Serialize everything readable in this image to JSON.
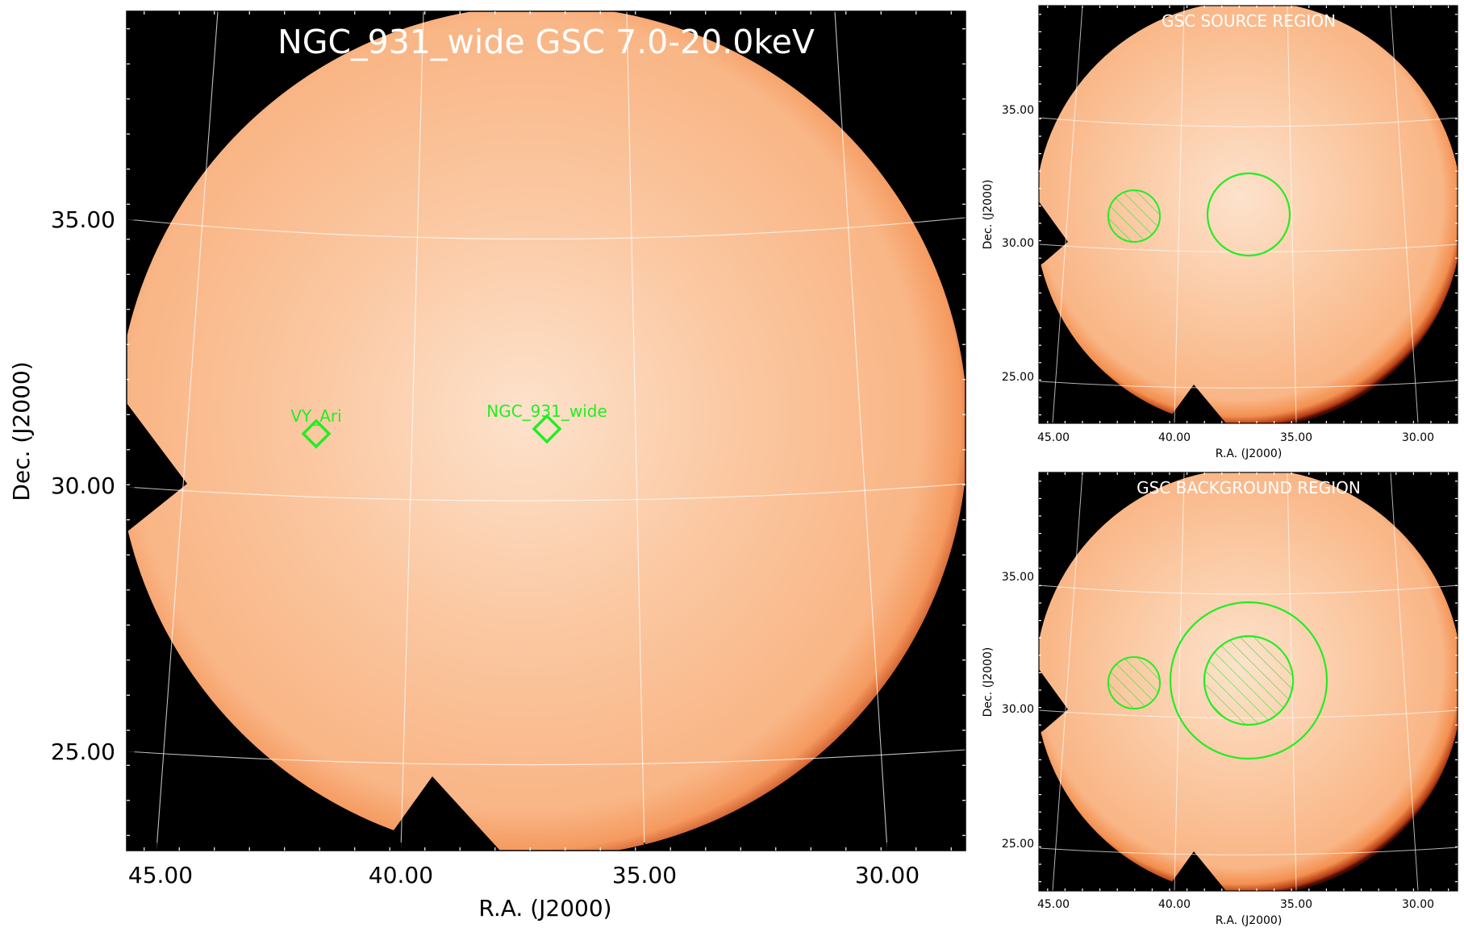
{
  "main_panel": {
    "title": "NGC_931_wide GSC 7.0-20.0keV",
    "xlabel": "R.A. (J2000)",
    "ylabel": "Dec. (J2000)",
    "xticks": [
      "45.00",
      "40.00",
      "35.00",
      "30.00"
    ],
    "yticks": [
      "35.00",
      "30.00",
      "25.00"
    ],
    "sources": [
      {
        "label": "VY_Ari"
      },
      {
        "label": "NGC_931_wide"
      }
    ]
  },
  "source_panel": {
    "title": "GSC SOURCE REGION",
    "xlabel": "R.A. (J2000)",
    "ylabel": "Dec. (J2000)",
    "xticks": [
      "45.00",
      "40.00",
      "35.00",
      "30.00"
    ],
    "yticks": [
      "35.00",
      "30.00",
      "25.00"
    ]
  },
  "background_panel": {
    "title": "GSC BACKGROUND REGION",
    "xlabel": "R.A. (J2000)",
    "ylabel": "Dec. (J2000)",
    "xticks": [
      "45.00",
      "40.00",
      "35.00",
      "30.00"
    ],
    "yticks": [
      "35.00",
      "30.00",
      "25.00"
    ]
  },
  "colors": {
    "sky": "#000000",
    "image_fill": "#f9b585",
    "image_center": "#fde2cc",
    "image_edge": "#8a1c08",
    "region": "#22ee22",
    "title_text": "#ffffff"
  }
}
